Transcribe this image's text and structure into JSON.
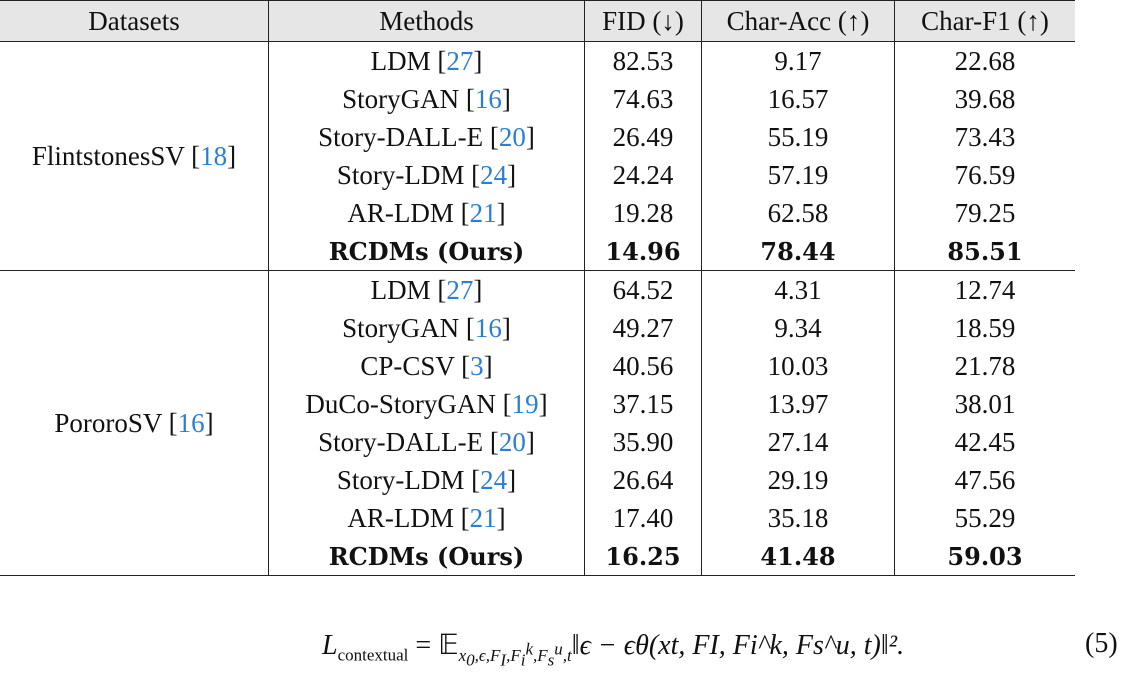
{
  "table": {
    "headers": [
      "Datasets",
      "Methods",
      "FID (↓)",
      "Char-Acc (↑)",
      "Char-F1 (↑)"
    ],
    "groups": [
      {
        "dataset": "FlintstonesSV",
        "dataset_ref": "18",
        "rows": [
          {
            "method": "LDM",
            "ref": "27",
            "fid": "82.53",
            "acc": "9.17",
            "f1": "22.68"
          },
          {
            "method": "StoryGAN",
            "ref": "16",
            "fid": "74.63",
            "acc": "16.57",
            "f1": "39.68"
          },
          {
            "method": "Story-DALL-E",
            "ref": "20",
            "fid": "26.49",
            "acc": "55.19",
            "f1": "73.43"
          },
          {
            "method": "Story-LDM",
            "ref": "24",
            "fid": "24.24",
            "acc": "57.19",
            "f1": "76.59"
          },
          {
            "method": "AR-LDM",
            "ref": "21",
            "fid": "19.28",
            "acc": "62.58",
            "f1": "79.25"
          },
          {
            "method": "RCDMs (Ours)",
            "ref": "",
            "fid": "14.96",
            "acc": "78.44",
            "f1": "85.51",
            "bold": true
          }
        ]
      },
      {
        "dataset": "PororoSV",
        "dataset_ref": "16",
        "rows": [
          {
            "method": "LDM",
            "ref": "27",
            "fid": "64.52",
            "acc": "4.31",
            "f1": "12.74"
          },
          {
            "method": "StoryGAN",
            "ref": "16",
            "fid": "49.27",
            "acc": "9.34",
            "f1": "18.59"
          },
          {
            "method": "CP-CSV",
            "ref": "3",
            "fid": "40.56",
            "acc": "10.03",
            "f1": "21.78"
          },
          {
            "method": "DuCo-StoryGAN",
            "ref": "19",
            "fid": "37.15",
            "acc": "13.97",
            "f1": "38.01"
          },
          {
            "method": "Story-DALL-E",
            "ref": "20",
            "fid": "35.90",
            "acc": "27.14",
            "f1": "42.45"
          },
          {
            "method": "Story-LDM",
            "ref": "24",
            "fid": "26.64",
            "acc": "29.19",
            "f1": "47.56"
          },
          {
            "method": "AR-LDM",
            "ref": "21",
            "fid": "17.40",
            "acc": "35.18",
            "f1": "55.29"
          },
          {
            "method": "RCDMs (Ours)",
            "ref": "",
            "fid": "16.25",
            "acc": "41.48",
            "f1": "59.03",
            "bold": true
          }
        ]
      }
    ]
  },
  "equation": {
    "lhs": "L",
    "lhs_sub": "contextual",
    "expectation": "𝔼",
    "expectation_sub": "x₀,ϵ,F_I,F_i^k,F_s^u,t",
    "body": "‖ϵ − ϵθ(xt, FI, Fi^k, Fs^u, t)‖².",
    "number": "(5)"
  },
  "colors": {
    "header_bg": "#e6e6e6",
    "citation": "#2a7fd4"
  }
}
